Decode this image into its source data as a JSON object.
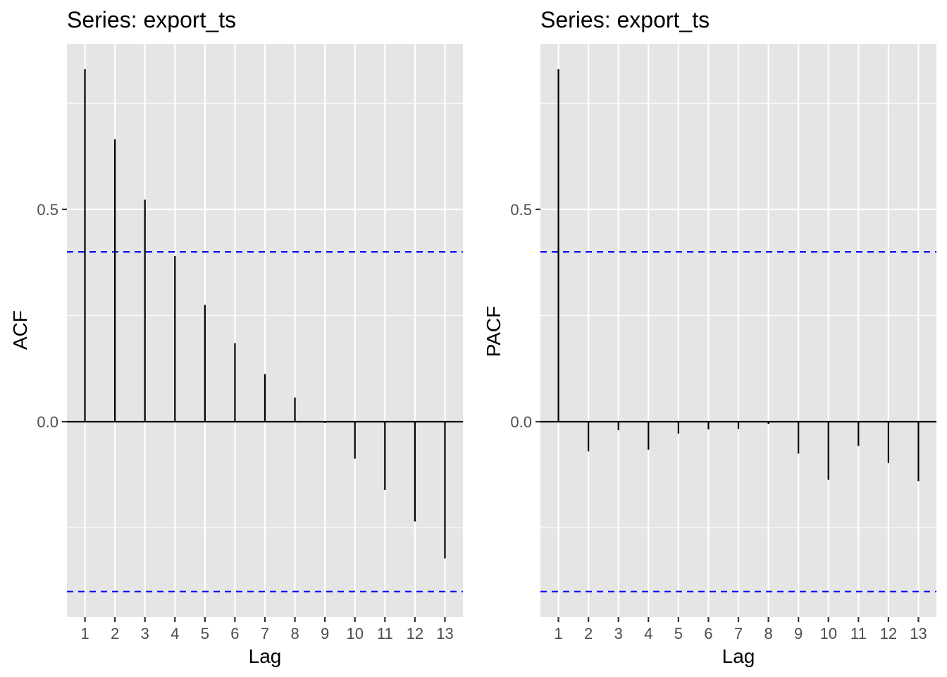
{
  "chart_data": [
    {
      "type": "bar",
      "title": "Series: export_ts",
      "xlabel": "Lag",
      "ylabel": "ACF",
      "categories": [
        "1",
        "2",
        "3",
        "4",
        "5",
        "6",
        "7",
        "8",
        "9",
        "10",
        "11",
        "12",
        "13"
      ],
      "x": [
        1,
        2,
        3,
        4,
        5,
        6,
        7,
        8,
        9,
        10,
        11,
        12,
        13
      ],
      "values": [
        0.83,
        0.665,
        0.523,
        0.39,
        0.275,
        0.185,
        0.112,
        0.057,
        -0.003,
        -0.087,
        -0.161,
        -0.235,
        -0.322
      ],
      "y_ticks": [
        0.0,
        0.5
      ],
      "y_tick_labels": [
        "0.0",
        "0.5"
      ],
      "ylim": [
        -0.46,
        0.89
      ],
      "xlim": [
        0.4,
        13.6
      ],
      "confidence_bounds": [
        0.4,
        -0.4
      ],
      "colors": {
        "stem": "#000000",
        "bound": "#0000ff",
        "panel": "#e5e5e5",
        "grid": "#ffffff"
      },
      "grid": true
    },
    {
      "type": "bar",
      "title": "Series: export_ts",
      "xlabel": "Lag",
      "ylabel": "PACF",
      "categories": [
        "1",
        "2",
        "3",
        "4",
        "5",
        "6",
        "7",
        "8",
        "9",
        "10",
        "11",
        "12",
        "13"
      ],
      "x": [
        1,
        2,
        3,
        4,
        5,
        6,
        7,
        8,
        9,
        10,
        11,
        12,
        13
      ],
      "values": [
        0.83,
        -0.07,
        -0.02,
        -0.066,
        -0.028,
        -0.018,
        -0.017,
        -0.005,
        -0.075,
        -0.137,
        -0.057,
        -0.097,
        -0.14
      ],
      "y_ticks": [
        0.0,
        0.5
      ],
      "y_tick_labels": [
        "0.0",
        "0.5"
      ],
      "ylim": [
        -0.46,
        0.89
      ],
      "xlim": [
        0.4,
        13.6
      ],
      "confidence_bounds": [
        0.4,
        -0.4
      ],
      "colors": {
        "stem": "#000000",
        "bound": "#0000ff",
        "panel": "#e5e5e5",
        "grid": "#ffffff"
      },
      "grid": true
    }
  ]
}
